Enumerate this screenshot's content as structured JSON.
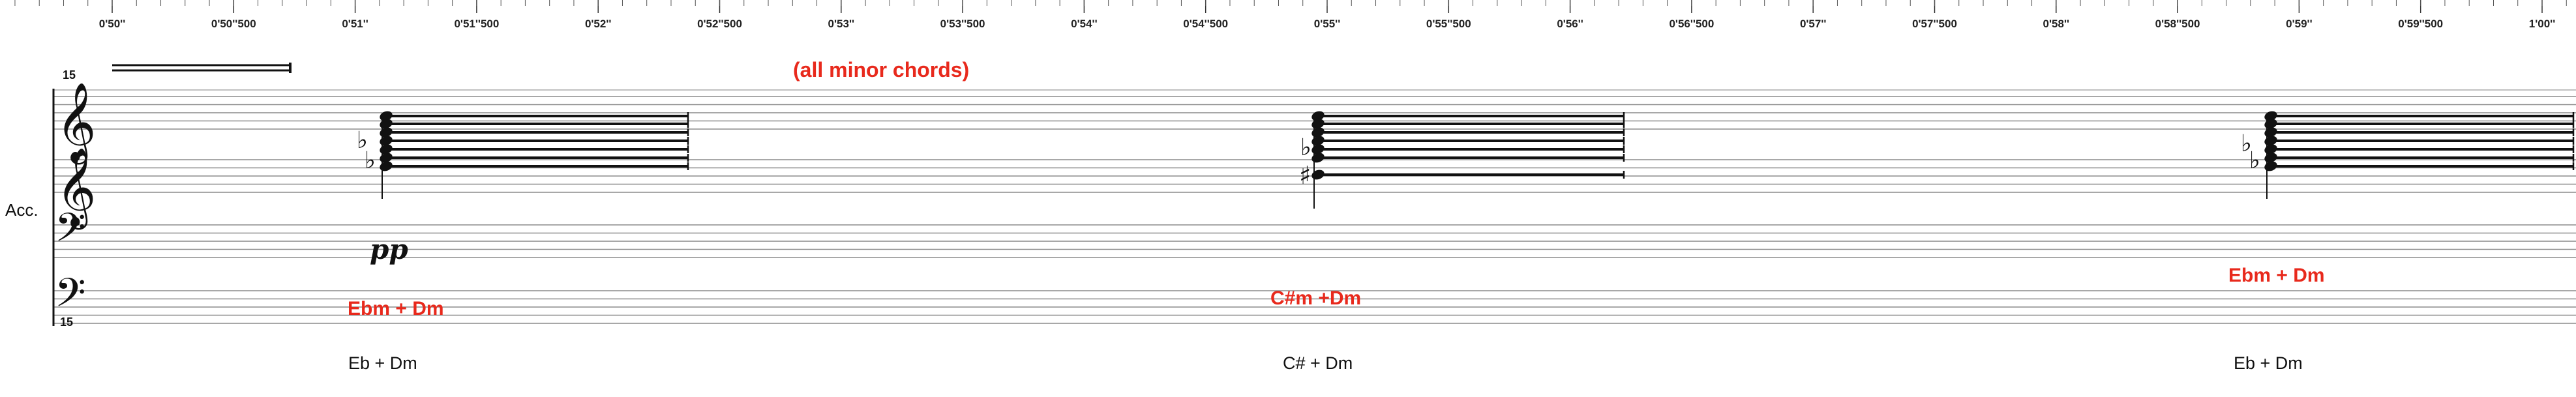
{
  "ruler": {
    "ticks": [
      "0'50''",
      "0'50''500",
      "0'51''",
      "0'51''500",
      "0'52''",
      "0'52''500",
      "0'53''",
      "0'53''500",
      "0'54''",
      "0'54''500",
      "0'55''",
      "0'55''500",
      "0'56''",
      "0'56''500",
      "0'57''",
      "0'57''500",
      "0'58''",
      "0'58''500",
      "0'59''",
      "0'59''500",
      "1'00''"
    ]
  },
  "score": {
    "instrument": "Acc.",
    "octave_top": "15",
    "octave_bottom": "15",
    "header_note": "(all minor chords)",
    "dynamic": "pp",
    "chords": [
      {
        "red_label": "Ebm + Dm",
        "black_label": "Eb + Dm",
        "accidentals": [
          "♭",
          "♭"
        ]
      },
      {
        "red_label": "C#m +Dm",
        "black_label": "C# + Dm",
        "accidentals": [
          "♭",
          "♯"
        ]
      },
      {
        "red_label": "Ebm + Dm",
        "black_label": "Eb + Dm",
        "accidentals": [
          "♭",
          "♭"
        ]
      }
    ]
  },
  "colors": {
    "annotation": "#e8291c",
    "ink": "#111111",
    "staff": "#8c8c8c"
  }
}
